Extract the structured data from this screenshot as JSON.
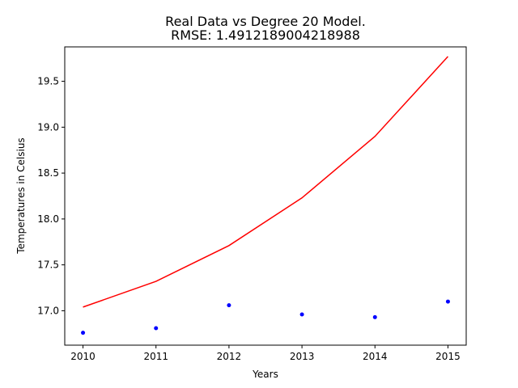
{
  "chart_data": {
    "type": "line",
    "title": "Real Data vs Degree 20 Model.",
    "subtitle": "RMSE: 1.4912189004218988",
    "xlabel": "Years",
    "ylabel": "Temperatures in Celsius",
    "xlim": [
      2009.75,
      2015.25
    ],
    "ylim": [
      16.625,
      19.875
    ],
    "grid": false,
    "x_ticks": [
      "2010",
      "2011",
      "2012",
      "2013",
      "2014",
      "2015"
    ],
    "y_ticks": [
      "17.0",
      "17.5",
      "18.0",
      "18.5",
      "19.0",
      "19.5"
    ],
    "series": [
      {
        "kind": "scatter",
        "color": "#0000ff",
        "x": [
          2010,
          2011,
          2012,
          2013,
          2014,
          2015
        ],
        "y": [
          16.76,
          16.81,
          17.06,
          16.96,
          16.93,
          17.1
        ]
      },
      {
        "kind": "line",
        "color": "#ff0000",
        "x": [
          2010,
          2011,
          2012,
          2013,
          2014,
          2015
        ],
        "y": [
          17.04,
          17.32,
          17.71,
          18.23,
          18.9,
          19.77
        ]
      }
    ]
  }
}
